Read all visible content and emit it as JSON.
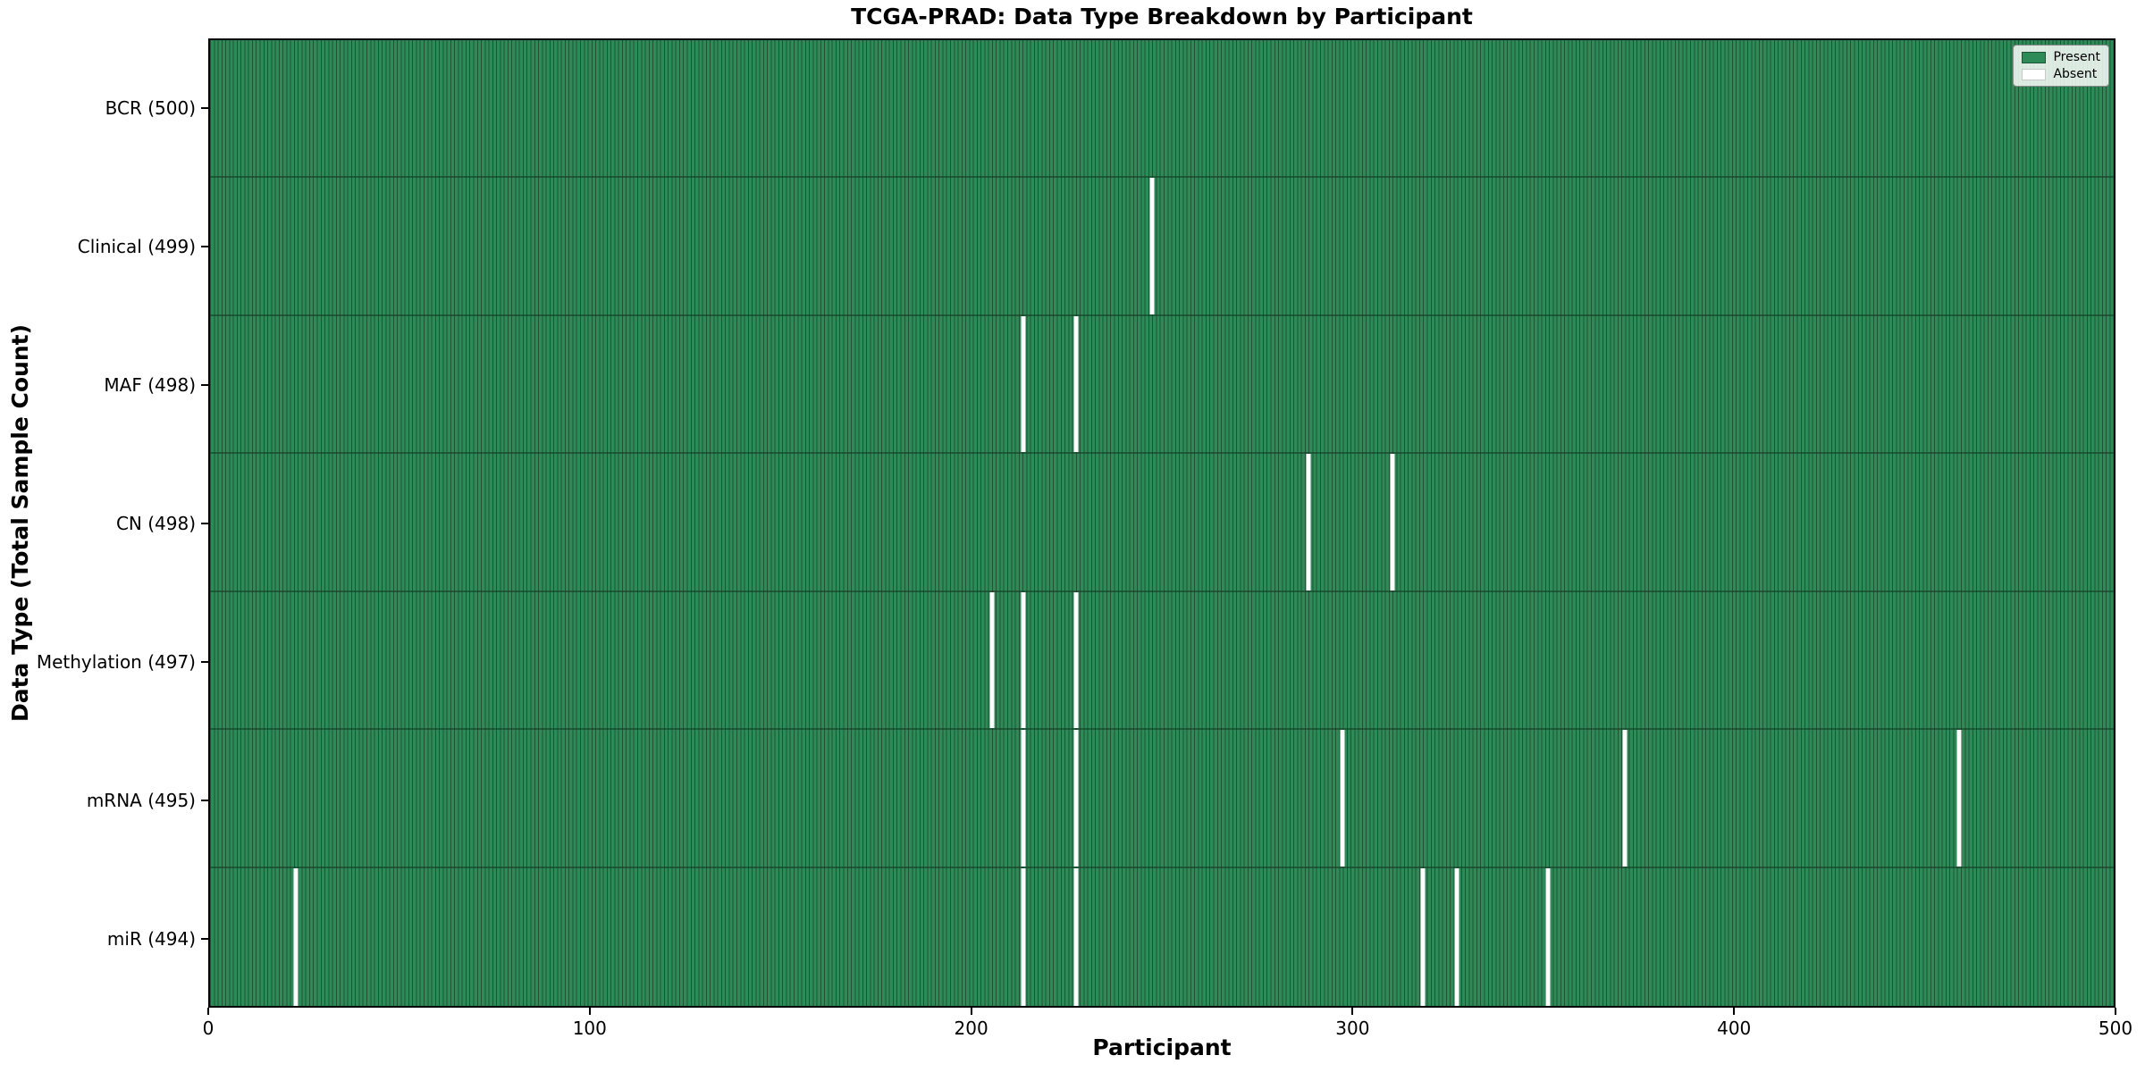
{
  "chart_data": {
    "type": "heatmap",
    "title": "TCGA-PRAD: Data Type Breakdown by Participant",
    "xlabel": "Participant",
    "ylabel": "Data Type (Total Sample Count)",
    "x_ticks": [
      0,
      100,
      200,
      300,
      400,
      500
    ],
    "x_range": [
      0,
      500
    ],
    "n_participants": 500,
    "legend": [
      {
        "label": "Present",
        "color": "#2e8b57",
        "edge": "#1d5438"
      },
      {
        "label": "Absent",
        "color": "#ffffff",
        "edge": "#c8c8c8"
      }
    ],
    "legend_position": "upper right",
    "grid": false,
    "colors": {
      "present_fill": "#2e8b57",
      "cell_edge": "#1d5438",
      "row_divider": "#173824",
      "absent_fill": "#ffffff",
      "plot_border": "#000000",
      "background": "#ffffff"
    },
    "rows": [
      {
        "label": "BCR (500)",
        "data_type": "BCR",
        "total": 500,
        "absent_participants": []
      },
      {
        "label": "Clinical (499)",
        "data_type": "Clinical",
        "total": 499,
        "absent_participants": [
          247
        ]
      },
      {
        "label": "MAF (498)",
        "data_type": "MAF",
        "total": 498,
        "absent_participants": [
          213,
          227
        ]
      },
      {
        "label": "CN (498)",
        "data_type": "CN",
        "total": 498,
        "absent_participants": [
          288,
          310
        ]
      },
      {
        "label": "Methylation (497)",
        "data_type": "Methylation",
        "total": 497,
        "absent_participants": [
          205,
          213,
          227
        ]
      },
      {
        "label": "mRNA (495)",
        "data_type": "mRNA",
        "total": 495,
        "absent_participants": [
          213,
          227,
          297,
          371,
          459
        ]
      },
      {
        "label": "miR (494)",
        "data_type": "miR",
        "total": 494,
        "absent_participants": [
          22,
          213,
          227,
          318,
          327,
          351
        ]
      }
    ]
  }
}
